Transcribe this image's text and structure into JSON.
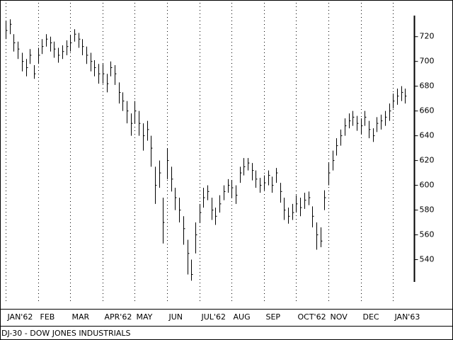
{
  "chart_data": {
    "type": "ohlc",
    "title": "DJ-30 - DOW JONES INDUSTRIALS",
    "color": "#000000",
    "categories": [
      "JAN'62",
      null,
      null,
      null,
      null,
      null,
      null,
      null,
      "FEB",
      null,
      null,
      null,
      null,
      null,
      null,
      null,
      "MAR",
      null,
      null,
      null,
      null,
      null,
      null,
      null,
      "APR'62",
      null,
      null,
      null,
      null,
      null,
      null,
      null,
      "MAY",
      null,
      null,
      null,
      null,
      null,
      null,
      null,
      "JUN",
      null,
      null,
      null,
      null,
      null,
      null,
      null,
      "JUL'62",
      null,
      null,
      null,
      null,
      null,
      null,
      null,
      "AUG",
      null,
      null,
      null,
      null,
      null,
      null,
      null,
      "SEP",
      null,
      null,
      null,
      null,
      null,
      null,
      null,
      "OCT'62",
      null,
      null,
      null,
      null,
      null,
      null,
      null,
      "NOV",
      null,
      null,
      null,
      null,
      null,
      null,
      null,
      "DEC",
      null,
      null,
      null,
      null,
      null,
      null,
      null,
      "JAN'63",
      null,
      null,
      null
    ],
    "high": [
      733,
      734,
      722,
      716,
      707,
      702,
      710,
      697,
      711,
      718,
      722,
      720,
      716,
      711,
      713,
      717,
      721,
      726,
      723,
      718,
      712,
      707,
      701,
      698,
      698,
      690,
      700,
      697,
      683,
      675,
      668,
      658,
      668,
      660,
      650,
      652,
      640,
      615,
      620,
      590,
      630,
      615,
      598,
      590,
      575,
      556,
      540,
      570,
      585,
      598,
      600,
      590,
      582,
      592,
      600,
      605,
      604,
      600,
      615,
      622,
      622,
      618,
      612,
      606,
      608,
      612,
      607,
      614,
      602,
      590,
      582,
      585,
      592,
      590,
      594,
      595,
      583,
      570,
      566,
      596,
      618,
      628,
      638,
      645,
      654,
      658,
      660,
      656,
      654,
      660,
      652,
      646,
      655,
      657,
      660,
      666,
      674,
      678,
      680,
      678
    ],
    "low": [
      718,
      722,
      708,
      702,
      692,
      688,
      698,
      686,
      698,
      706,
      712,
      708,
      703,
      699,
      702,
      705,
      708,
      716,
      711,
      705,
      698,
      692,
      688,
      682,
      682,
      675,
      688,
      681,
      666,
      660,
      650,
      640,
      650,
      640,
      628,
      636,
      615,
      585,
      598,
      553,
      605,
      595,
      580,
      570,
      552,
      528,
      523,
      545,
      570,
      582,
      588,
      572,
      568,
      578,
      588,
      594,
      590,
      585,
      602,
      608,
      612,
      604,
      598,
      594,
      596,
      600,
      594,
      602,
      586,
      572,
      569,
      572,
      578,
      575,
      581,
      584,
      566,
      548,
      550,
      580,
      600,
      612,
      624,
      632,
      640,
      646,
      648,
      644,
      641,
      648,
      638,
      635,
      643,
      645,
      648,
      652,
      662,
      665,
      668,
      666
    ],
    "close": [
      725,
      730,
      715,
      710,
      700,
      695,
      705,
      690,
      705,
      712,
      718,
      715,
      710,
      705,
      708,
      712,
      715,
      722,
      718,
      712,
      705,
      700,
      695,
      690,
      690,
      682,
      695,
      690,
      675,
      668,
      660,
      650,
      660,
      650,
      640,
      645,
      630,
      600,
      610,
      570,
      620,
      605,
      590,
      580,
      565,
      545,
      528,
      560,
      578,
      590,
      595,
      580,
      575,
      585,
      595,
      600,
      598,
      592,
      610,
      615,
      618,
      612,
      605,
      600,
      602,
      608,
      600,
      610,
      595,
      580,
      575,
      578,
      585,
      582,
      588,
      590,
      575,
      560,
      555,
      590,
      610,
      620,
      632,
      640,
      648,
      652,
      655,
      650,
      648,
      655,
      645,
      640,
      650,
      652,
      655,
      660,
      668,
      672,
      675,
      672
    ],
    "ylim": [
      522,
      737
    ],
    "yticks": [
      540,
      560,
      580,
      600,
      620,
      640,
      660,
      680,
      700,
      720
    ]
  }
}
